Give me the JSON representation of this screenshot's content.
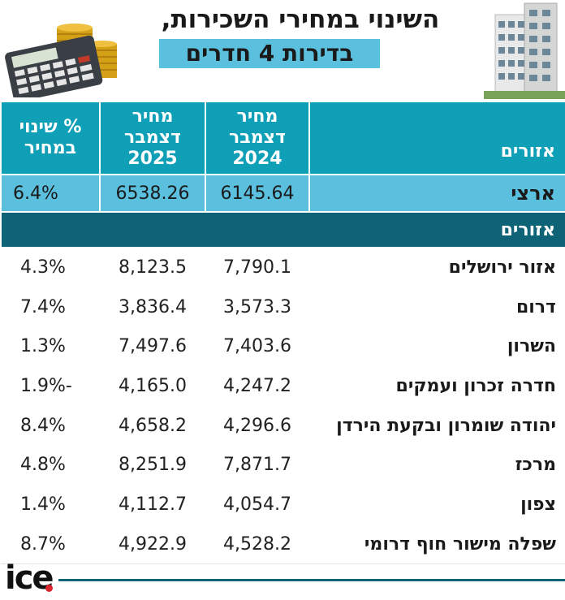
{
  "title": {
    "line1": "השינוי במחירי השכירות,",
    "line2": "בדירות 4 חדרים"
  },
  "chart_data": {
    "type": "table",
    "columns": [
      "אזורים",
      "מחיר\nדצמבר\n2024",
      "מחיר\nדצמבר\n2025",
      "% שינוי\nבמחיר"
    ],
    "national": {
      "name": "ארצי",
      "v2024": "6145.64",
      "v2025": "6538.26",
      "pct": "6.4%"
    },
    "section_label": "אזורים",
    "rows": [
      {
        "name": "אזור ירושלים",
        "v2024": "7,790.1",
        "v2025": "8,123.5",
        "pct": "4.3%"
      },
      {
        "name": "דרום",
        "v2024": "3,573.3",
        "v2025": "3,836.4",
        "pct": "7.4%"
      },
      {
        "name": "השרון",
        "v2024": "7,403.6",
        "v2025": "7,497.6",
        "pct": "1.3%"
      },
      {
        "name": "חדרה זכרון ועמקים",
        "v2024": "4,247.2",
        "v2025": "4,165.0",
        "pct": "-1.9%"
      },
      {
        "name": "יהודה שומרון ובקעת הירדן",
        "v2024": "4,296.6",
        "v2025": "4,658.2",
        "pct": "8.4%"
      },
      {
        "name": "מרכז",
        "v2024": "7,871.7",
        "v2025": "8,251.9",
        "pct": "4.8%"
      },
      {
        "name": "צפון",
        "v2024": "4,054.7",
        "v2025": "4,112.7",
        "pct": "1.4%"
      },
      {
        "name": "שפלה מישור חוף דרומי",
        "v2024": "4,528.2",
        "v2025": "4,922.9",
        "pct": "8.7%"
      }
    ]
  },
  "logo": {
    "text": "ice"
  },
  "colors": {
    "header": "#0f9fb7",
    "national": "#5bc0de",
    "section": "#0e6377",
    "logo_dot": "#d9252b"
  }
}
